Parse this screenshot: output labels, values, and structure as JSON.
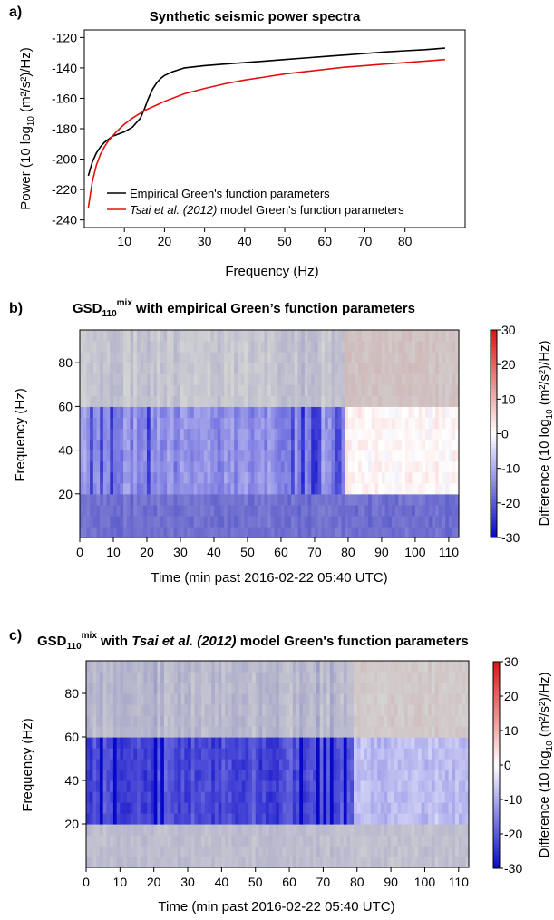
{
  "panel_a": {
    "label": "a)",
    "chart_data": {
      "type": "line",
      "title": "Synthetic seismic power spectra",
      "xlabel": "Frequency (Hz)",
      "ylabel_pre": "Power (10 log",
      "ylabel_sub": "10",
      "ylabel_post": " (m²/s²)/Hz)",
      "xlim": [
        0,
        95
      ],
      "ylim": [
        -245,
        -115
      ],
      "xticks": [
        10,
        20,
        30,
        40,
        50,
        60,
        70,
        80
      ],
      "yticks": [
        -240,
        -220,
        -200,
        -180,
        -160,
        -140,
        -120
      ],
      "legend_position": "bottom-right",
      "series": [
        {
          "name": "Empirical Green's function parameters",
          "color": "#000000",
          "x": [
            1,
            2,
            3,
            4,
            5,
            6,
            7,
            8,
            10,
            12,
            14,
            15,
            16,
            17,
            18,
            19,
            20,
            22,
            25,
            30,
            35,
            40,
            45,
            50,
            55,
            60,
            65,
            70,
            75,
            80,
            85,
            90
          ],
          "y": [
            -211,
            -202,
            -196,
            -192,
            -189,
            -187,
            -185,
            -184,
            -182,
            -179,
            -173,
            -167,
            -160,
            -154,
            -150,
            -147,
            -145,
            -142.5,
            -140,
            -138.5,
            -137.5,
            -136.5,
            -135.5,
            -134.5,
            -133.5,
            -132.5,
            -131.5,
            -130.5,
            -129.5,
            -128.7,
            -128,
            -127
          ]
        },
        {
          "name_italic": "Tsai et al. (2012)",
          "name_rest": " model Green's function parameters",
          "color": "#e01010",
          "x": [
            1,
            2,
            3,
            4,
            5,
            6,
            8,
            10,
            12,
            15,
            18,
            20,
            25,
            30,
            35,
            40,
            45,
            50,
            55,
            60,
            65,
            70,
            75,
            80,
            85,
            90
          ],
          "y": [
            -232,
            -215,
            -204,
            -197,
            -192,
            -188,
            -182,
            -177,
            -173,
            -168,
            -164.5,
            -162,
            -157,
            -153.5,
            -150.5,
            -148,
            -146,
            -144,
            -142.5,
            -141,
            -139.5,
            -138.5,
            -137.5,
            -136.5,
            -135.5,
            -134.5
          ]
        }
      ]
    }
  },
  "panel_b": {
    "label": "b)",
    "title_main": "GSD",
    "title_sub": "110",
    "title_sup": "mix",
    "title_rest": " with empirical Green’s function parameters",
    "chart_data": {
      "type": "heatmap",
      "xlabel": "Time (min past 2016-02-22 05:40 UTC)",
      "ylabel": "Frequency (Hz)",
      "colorbar_label_pre": "Difference (10 log",
      "colorbar_label_sub": "10",
      "colorbar_label_post": " (m²/s²)/Hz)",
      "xlim": [
        0,
        113
      ],
      "ylim": [
        0,
        95
      ],
      "xticks": [
        0,
        10,
        20,
        30,
        40,
        50,
        60,
        70,
        80,
        90,
        100,
        110
      ],
      "yticks": [
        20,
        40,
        60,
        80
      ],
      "clim": [
        -30,
        30
      ],
      "cticks": [
        -30,
        -20,
        -10,
        0,
        10,
        20,
        30
      ],
      "bands": [
        {
          "fmin": 0,
          "fmax": 20,
          "min0_79": -20,
          "min79_113": -20
        },
        {
          "fmin": 20,
          "fmax": 60,
          "min0_79": -14,
          "min79_113": 1
        },
        {
          "fmin": 60,
          "fmax": 95,
          "min0_79": -4,
          "min79_113": 5
        }
      ],
      "strong_columns_min": [
        3,
        6,
        9,
        20,
        63,
        66,
        69,
        70,
        71,
        76,
        77
      ]
    }
  },
  "panel_c": {
    "label": "c)",
    "title_main": "GSD",
    "title_sub": "110",
    "title_sup": "mix",
    "title_with": " with ",
    "title_italic": "Tsai et al. (2012)",
    "title_rest": " model Green's function parameters",
    "chart_data": {
      "type": "heatmap",
      "xlabel": "Time (min past 2016-02-22 05:40 UTC)",
      "ylabel": "Frequency (Hz)",
      "colorbar_label_pre": "Difference (10 log",
      "colorbar_label_sub": "10",
      "colorbar_label_post": " (m²/s²)/Hz)",
      "xlim": [
        0,
        113
      ],
      "ylim": [
        0,
        95
      ],
      "xticks": [
        0,
        10,
        20,
        30,
        40,
        50,
        60,
        70,
        80,
        90,
        100,
        110
      ],
      "yticks": [
        20,
        40,
        60,
        80
      ],
      "clim": [
        -30,
        30
      ],
      "cticks": [
        -30,
        -20,
        -10,
        0,
        10,
        20,
        30
      ],
      "bands": [
        {
          "fmin": 0,
          "fmax": 20,
          "min0_79": -6,
          "min79_113": -5
        },
        {
          "fmin": 20,
          "fmax": 60,
          "min0_79": -22,
          "min79_113": -8
        },
        {
          "fmin": 60,
          "fmax": 95,
          "min0_79": -7,
          "min79_113": 3
        }
      ],
      "strong_columns_min": [
        4,
        8,
        20,
        22,
        63,
        68,
        70,
        72,
        76
      ]
    }
  }
}
